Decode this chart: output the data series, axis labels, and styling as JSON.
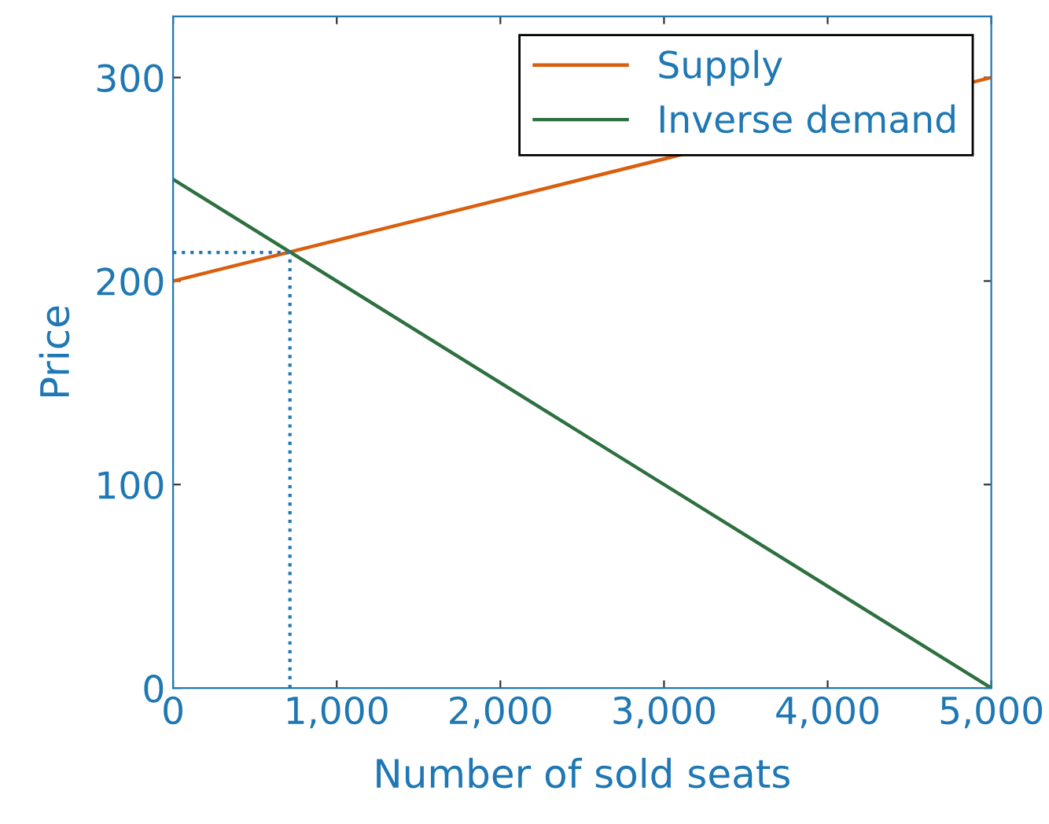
{
  "chart_data": {
    "type": "line",
    "xlabel": "Number of sold seats",
    "ylabel": "Price",
    "x": [
      0,
      5000
    ],
    "series": [
      {
        "name": "Supply",
        "color": "#d95f0e",
        "values": [
          200,
          300
        ]
      },
      {
        "name": "Inverse demand",
        "color": "#2e7040",
        "values": [
          250,
          0
        ]
      }
    ],
    "xlim": [
      0,
      5000
    ],
    "ylim": [
      0,
      330
    ],
    "xticks": [
      0,
      {
        "value": 1000,
        "label": "1,000"
      },
      {
        "value": 2000,
        "label": "2,000"
      },
      {
        "value": 3000,
        "label": "3,000"
      },
      {
        "value": 4000,
        "label": "4,000"
      },
      {
        "value": 5000,
        "label": "5,000"
      }
    ],
    "yticks": [
      0,
      100,
      200,
      300
    ],
    "ref_lines": [
      {
        "axis": "x",
        "value": 714,
        "color": "#1f78b4",
        "line_style": "dotted"
      },
      {
        "axis": "y",
        "value": 214,
        "color": "#1f78b4",
        "line_style": "dotted"
      }
    ],
    "grid": false,
    "legend": "top right",
    "line_style": "solid",
    "marker": "none"
  }
}
